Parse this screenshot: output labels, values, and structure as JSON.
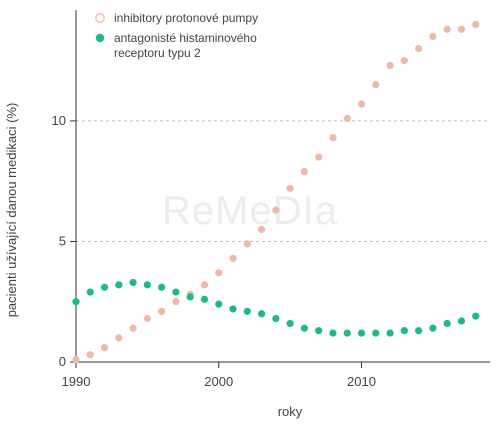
{
  "chart_data": {
    "type": "scatter",
    "xlabel": "roky",
    "ylabel": "pacienti užívající danou medikaci (%)",
    "xlim": [
      1990,
      2019
    ],
    "ylim": [
      0,
      14.6
    ],
    "x_ticks": [
      1990,
      2000,
      2010
    ],
    "y_ticks": [
      0,
      5,
      10
    ],
    "grid": "horizontal dashed at y ticks",
    "legend_position": "top-left",
    "watermark": "ReMeDIa",
    "series": [
      {
        "name": "inhibitory protonové pumpy",
        "marker": "circle",
        "color": "#f0b8a8",
        "x": [
          1990,
          1991,
          1992,
          1993,
          1994,
          1995,
          1996,
          1997,
          1998,
          1999,
          2000,
          2001,
          2002,
          2003,
          2004,
          2005,
          2006,
          2007,
          2008,
          2009,
          2010,
          2011,
          2012,
          2013,
          2014,
          2015,
          2016,
          2017,
          2018
        ],
        "y": [
          0.1,
          0.3,
          0.6,
          1.0,
          1.4,
          1.8,
          2.1,
          2.5,
          2.8,
          3.2,
          3.7,
          4.3,
          4.9,
          5.5,
          6.3,
          7.2,
          7.9,
          8.5,
          9.3,
          10.1,
          10.7,
          11.5,
          12.3,
          12.5,
          13.0,
          13.5,
          13.8,
          13.8,
          14.0
        ]
      },
      {
        "name": "antagonisté histaminového receptoru typu 2",
        "name_lines": [
          "antagonisté histaminového",
          "receptoru typu 2"
        ],
        "marker": "circle",
        "color": "#1fb88a",
        "x": [
          1990,
          1991,
          1992,
          1993,
          1994,
          1995,
          1996,
          1997,
          1998,
          1999,
          2000,
          2001,
          2002,
          2003,
          2004,
          2005,
          2006,
          2007,
          2008,
          2009,
          2010,
          2011,
          2012,
          2013,
          2014,
          2015,
          2016,
          2017,
          2018
        ],
        "y": [
          2.5,
          2.9,
          3.1,
          3.2,
          3.3,
          3.2,
          3.1,
          2.9,
          2.7,
          2.6,
          2.4,
          2.2,
          2.1,
          2.0,
          1.8,
          1.6,
          1.4,
          1.3,
          1.2,
          1.2,
          1.2,
          1.2,
          1.2,
          1.3,
          1.3,
          1.4,
          1.6,
          1.7,
          1.9
        ]
      }
    ]
  }
}
